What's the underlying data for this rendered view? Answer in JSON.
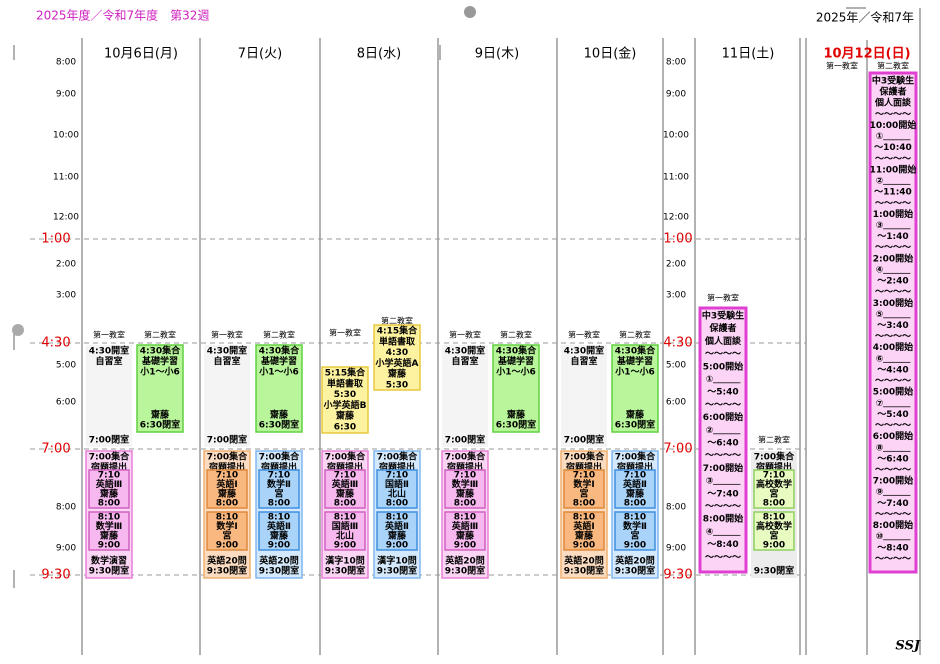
{
  "header": {
    "fiscal": "2025年度／令和7年度　第32週",
    "year": "2025年／令和7年"
  },
  "times": [
    "8:00",
    "9:00",
    "10:00",
    "11:00",
    "12:00",
    "1:00",
    "2:00",
    "3:00",
    "4:30",
    "5:00",
    "6:00",
    "7:00",
    "8:00",
    "9:00",
    "9:30"
  ],
  "days": [
    {
      "label": "10月6日(月)",
      "rooms": [
        "第一教室",
        "第二教室"
      ],
      "blocks": [
        {
          "top": [
            "4:30開室",
            "自習室"
          ],
          "bottom": [
            "7:00閉室"
          ]
        },
        {
          "top": [
            "4:30集合",
            "基礎学習",
            "小1～小6"
          ],
          "bottom": [
            "齋藤",
            "6:30閉室"
          ]
        },
        {
          "top": [
            "7:00集合",
            "宿題提出"
          ],
          "inner": [
            [
              "7:10",
              "英語Ⅲ",
              "齋藤",
              "8:00"
            ],
            [
              "8:10",
              "数学Ⅲ",
              "齋藤",
              "9:00"
            ]
          ],
          "bottom": [
            "数学演習",
            "9:30閉室"
          ]
        }
      ]
    },
    {
      "label": "7日(火)",
      "rooms": [
        "第一教室",
        "第二教室"
      ],
      "blocks": [
        {
          "top": [
            "4:30開室",
            "自習室"
          ],
          "bottom": [
            "7:00閉室"
          ]
        },
        {
          "top": [
            "4:30集合",
            "基礎学習",
            "小1～小6"
          ],
          "bottom": [
            "齋藤",
            "6:30閉室"
          ]
        },
        {
          "top": [
            "7:00集合",
            "宿題提出"
          ],
          "inner": [
            [
              "7:10",
              "英語Ⅰ",
              "齋藤",
              "8:00"
            ],
            [
              "8:10",
              "数学Ⅰ",
              "宮",
              "9:00"
            ]
          ],
          "bottom": [
            "英語20問",
            "9:30閉室"
          ]
        },
        {
          "top": [
            "7:00集合",
            "宿題提出"
          ],
          "inner": [
            [
              "7:10",
              "数学Ⅱ",
              "宮",
              "8:00"
            ],
            [
              "8:10",
              "英語Ⅱ",
              "齋藤",
              "9:00"
            ]
          ],
          "bottom": [
            "英語20問",
            "9:30閉室"
          ]
        }
      ]
    },
    {
      "label": "8日(水)",
      "rooms": [
        "第一教室",
        "第二教室"
      ],
      "blocks": [
        {
          "top": [
            "5:15集合",
            "単語書取",
            "5:30",
            "小学英語B",
            "齋藤",
            "6:30"
          ]
        },
        {
          "top": [
            "4:15集合",
            "単語書取",
            "4:30",
            "小学英語A",
            "齋藤",
            "5:30"
          ]
        },
        {
          "top": [
            "7:00集合",
            "宿題提出"
          ],
          "inner": [
            [
              "7:10",
              "英語Ⅲ",
              "齋藤",
              "8:00"
            ],
            [
              "8:10",
              "国語Ⅲ",
              "北山",
              "9:00"
            ]
          ],
          "bottom": [
            "漢字10問",
            "9:30閉室"
          ]
        },
        {
          "top": [
            "7:00集合",
            "宿題提出"
          ],
          "inner": [
            [
              "7:10",
              "国語Ⅱ",
              "北山",
              "8:00"
            ],
            [
              "8:10",
              "英語Ⅱ",
              "齋藤",
              "9:00"
            ]
          ],
          "bottom": [
            "漢字10問",
            "9:30閉室"
          ]
        }
      ]
    },
    {
      "label": "9日(木)",
      "rooms": [
        "第一教室",
        "第二教室"
      ],
      "blocks": [
        {
          "top": [
            "4:30開室",
            "自習室"
          ],
          "bottom": [
            "7:00閉室"
          ]
        },
        {
          "top": [
            "4:30集合",
            "基礎学習",
            "小1～小6"
          ],
          "bottom": [
            "齋藤",
            "6:30閉室"
          ]
        },
        {
          "top": [
            "7:00集合",
            "宿題提出"
          ],
          "inner": [
            [
              "7:10",
              "数学Ⅲ",
              "齋藤",
              "8:00"
            ],
            [
              "8:10",
              "英語Ⅲ",
              "齋藤",
              "9:00"
            ]
          ],
          "bottom": [
            "英語20問",
            "9:30閉室"
          ]
        }
      ]
    },
    {
      "label": "10日(金)",
      "rooms": [
        "第一教室",
        "第二教室"
      ],
      "blocks": [
        {
          "top": [
            "4:30開室",
            "自習室"
          ],
          "bottom": [
            "7:00閉室"
          ]
        },
        {
          "top": [
            "4:30集合",
            "基礎学習",
            "小1～小6"
          ],
          "bottom": [
            "齋藤",
            "6:30閉室"
          ]
        },
        {
          "top": [
            "7:00集合",
            "宿題提出"
          ],
          "inner": [
            [
              "7:10",
              "数学Ⅰ",
              "宮",
              "8:00"
            ],
            [
              "8:10",
              "英語Ⅰ",
              "齋藤",
              "9:00"
            ]
          ],
          "bottom": [
            "英語20問",
            "9:30閉室"
          ]
        },
        {
          "top": [
            "7:00集合",
            "宿題提出"
          ],
          "inner": [
            [
              "7:10",
              "英語Ⅱ",
              "齋藤",
              "8:00"
            ],
            [
              "8:10",
              "数学Ⅱ",
              "宮",
              "9:00"
            ]
          ],
          "bottom": [
            "英語20問",
            "9:30閉室"
          ]
        }
      ]
    },
    {
      "label": "11日(土)",
      "rooms": [
        "第一教室",
        "第二教室"
      ],
      "blocks": [
        {
          "top": [
            "中3受験生",
            "保護者",
            "個人面談",
            "～～～～",
            "5:00開始",
            "①＿＿＿",
            "～5:40",
            "～～～～",
            "6:00開始",
            "②＿＿＿",
            "～6:40",
            "～～～～",
            "7:00開始",
            "③＿＿＿",
            "～7:40",
            "～～～～",
            "8:00開始",
            "④＿＿＿",
            "～8:40",
            "～～～～"
          ]
        },
        {
          "top": [
            "7:00集合",
            "宿題提出"
          ],
          "inner": [
            [
              "7:10",
              "高校数学",
              "宮",
              "8:00"
            ],
            [
              "8:10",
              "高校数学",
              "宮",
              "9:00"
            ]
          ],
          "bottom": [
            "9:30閉室"
          ]
        }
      ]
    },
    {
      "label": "10月12日(日)",
      "rooms": [
        "第一教室",
        "第二教室"
      ],
      "blocks": [
        {
          "top": [
            "中3受験生",
            "保護者",
            "個人面談",
            "～～～～",
            "10:00開始",
            "①＿＿＿",
            "～10:40",
            "～～～～",
            "11:00開始",
            "②＿＿＿",
            "～11:40",
            "～～～～",
            "1:00開始",
            "③＿＿＿",
            "～1:40",
            "～～～～",
            "2:00開始",
            "④＿＿＿",
            "～2:40",
            "～～～～",
            "3:00開始",
            "⑤＿＿＿",
            "～3:40",
            "～～～～",
            "4:00開始",
            "⑥＿＿＿",
            "～4:40",
            "～～～～",
            "5:00開始",
            "⑦＿＿＿",
            "～5:40",
            "～～～～",
            "6:00開始",
            "⑧＿＿＿",
            "～6:40",
            "～～～～",
            "7:00開始",
            "⑨＿＿＿",
            "～7:40",
            "～～～～",
            "8:00開始",
            "⑩＿＿＿",
            "～8:40",
            "～～～～"
          ]
        }
      ]
    }
  ],
  "footer": "SSJ"
}
